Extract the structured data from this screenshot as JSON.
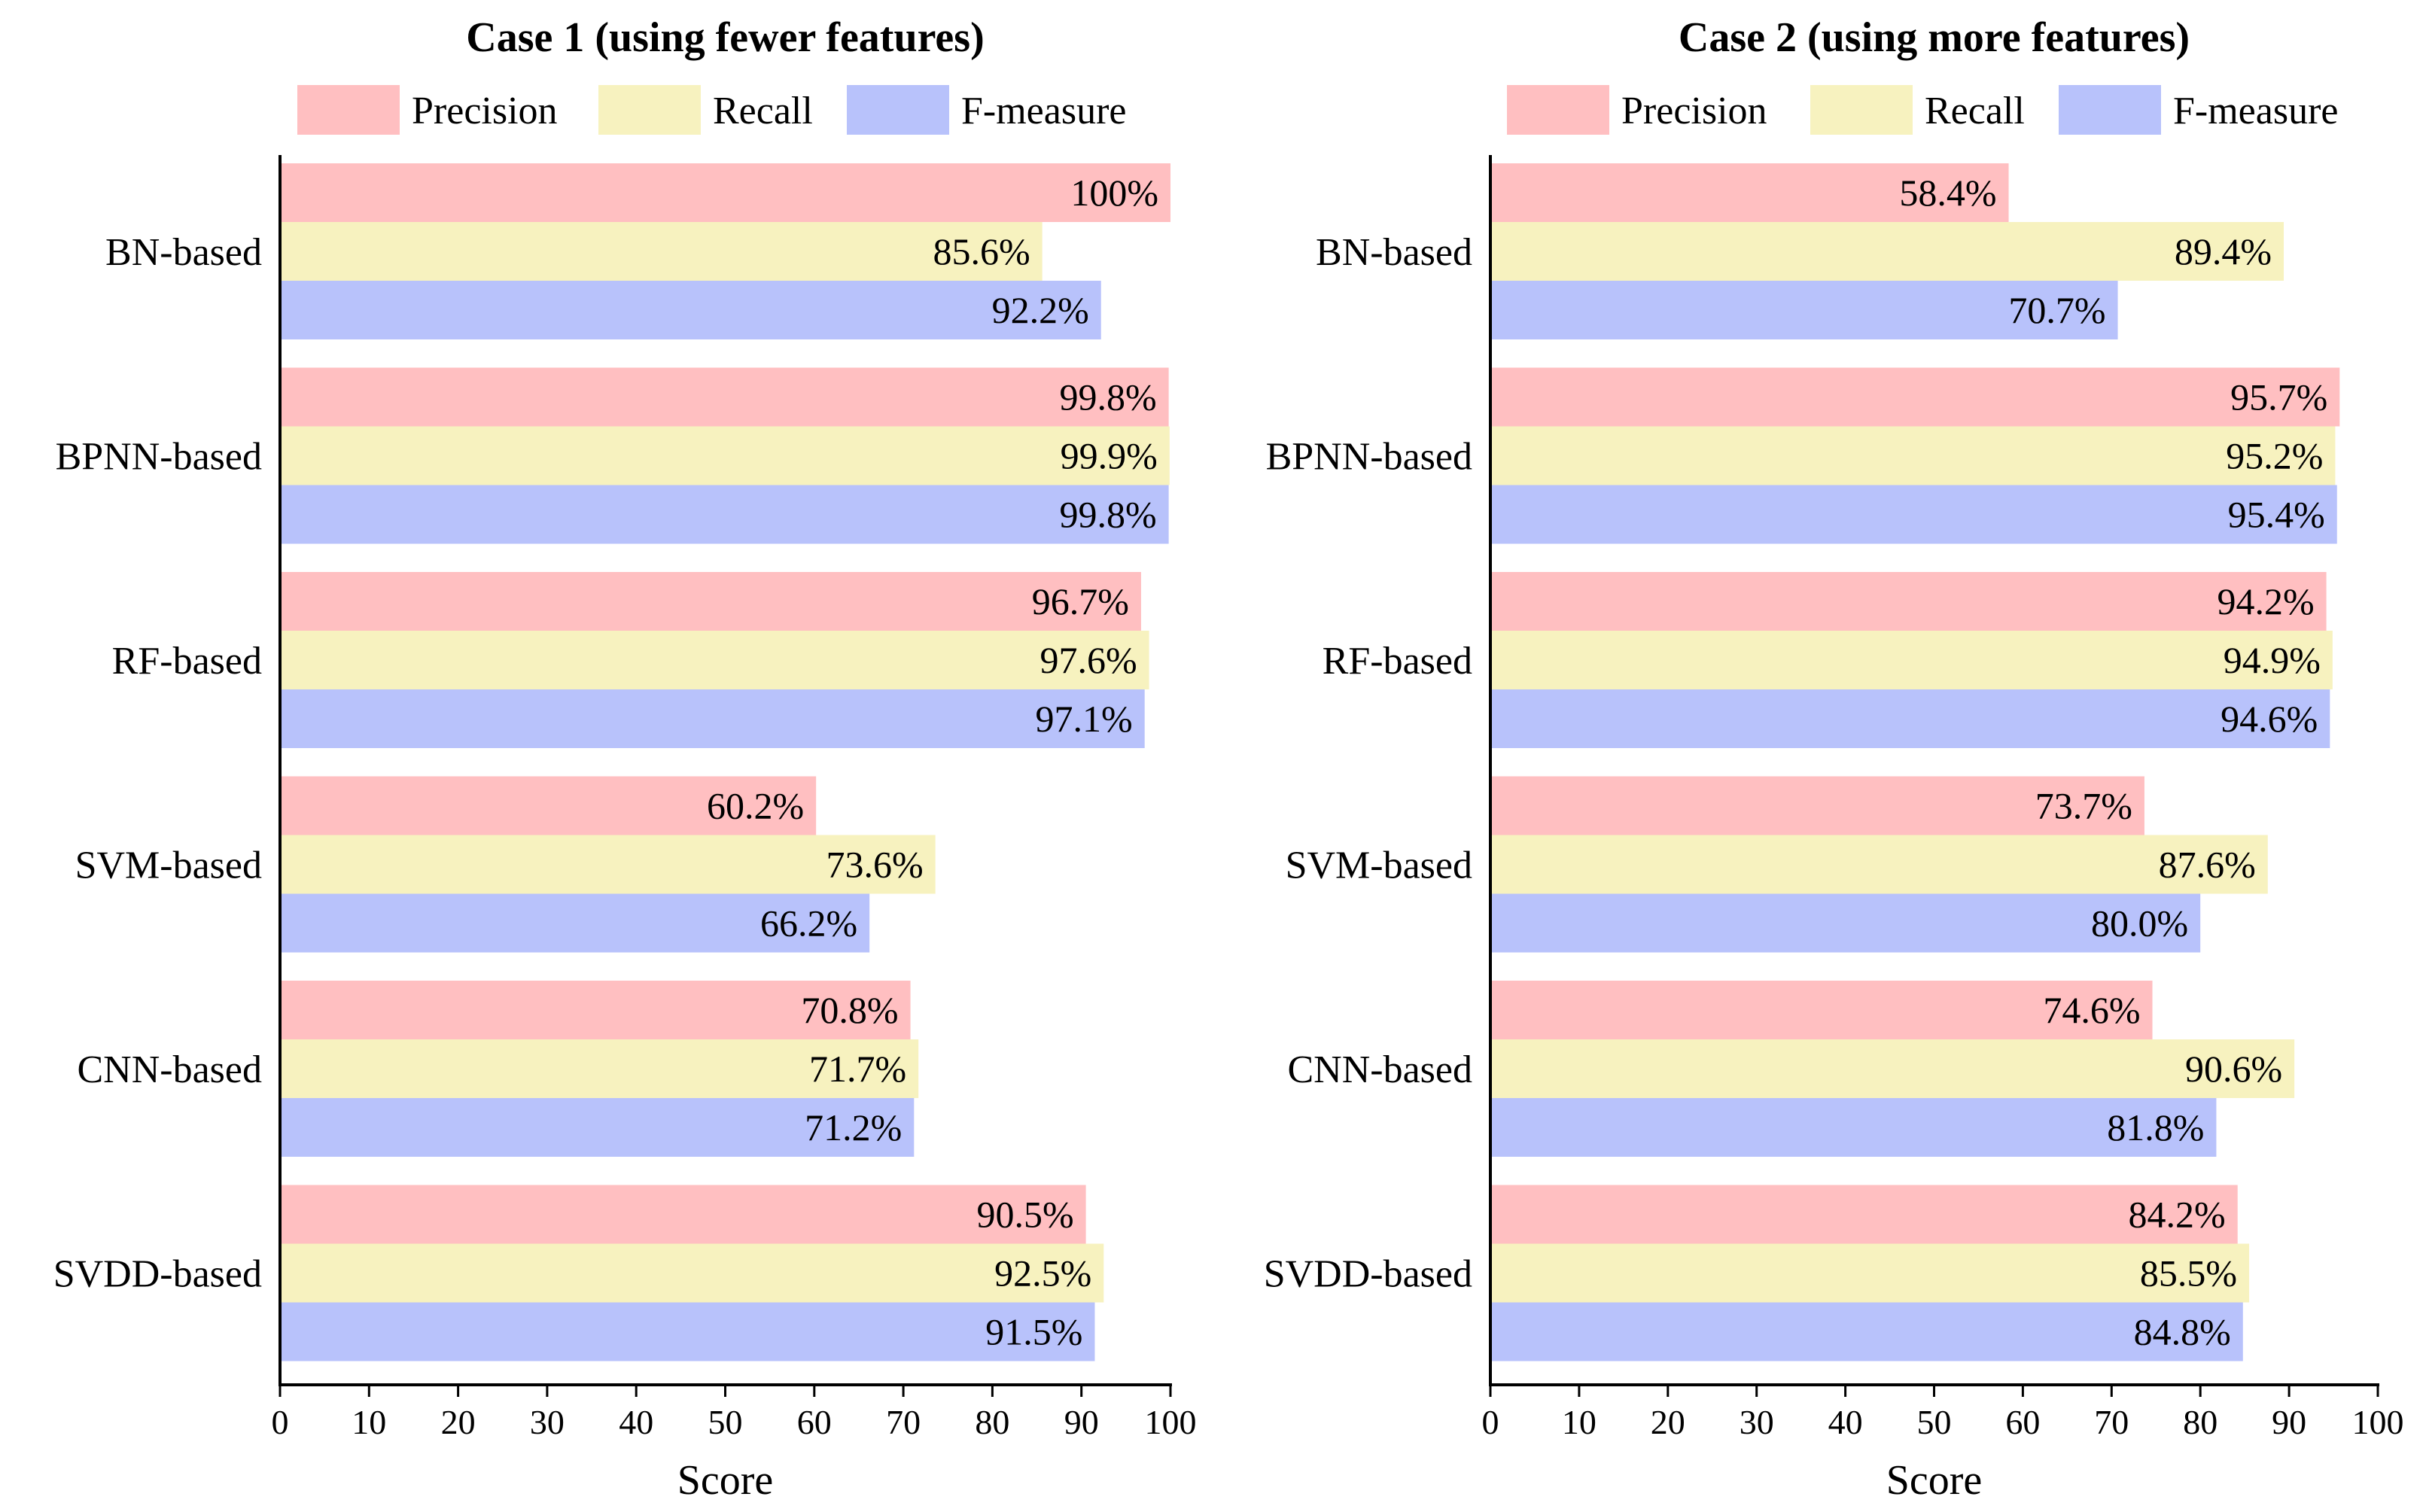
{
  "chart_data": [
    {
      "type": "bar",
      "orientation": "horizontal",
      "title": "Case 1 (using fewer features)",
      "xlabel": "Score",
      "ylabel": "",
      "xlim": [
        0,
        100
      ],
      "xticks": [
        "0",
        "10",
        "20",
        "30",
        "40",
        "50",
        "60",
        "70",
        "80",
        "90",
        "100"
      ],
      "categories": [
        "BN-based",
        "BPNN-based",
        "RF-based",
        "SVM-based",
        "CNN-based",
        "SVDD-based"
      ],
      "legend_position": "top",
      "series": [
        {
          "name": "Precision",
          "color": "#FFBFC1",
          "values": [
            100,
            99.8,
            96.7,
            60.2,
            70.8,
            90.5
          ],
          "labels": [
            "100%",
            "99.8%",
            "96.7%",
            "60.2%",
            "70.8%",
            "90.5%"
          ]
        },
        {
          "name": "Recall",
          "color": "#F7F2BF",
          "values": [
            85.6,
            99.9,
            97.6,
            73.6,
            71.7,
            92.5
          ],
          "labels": [
            "85.6%",
            "99.9%",
            "97.6%",
            "73.6%",
            "71.7%",
            "92.5%"
          ]
        },
        {
          "name": "F-measure",
          "color": "#B8C2FB",
          "values": [
            92.2,
            99.8,
            97.1,
            66.2,
            71.2,
            91.5
          ],
          "labels": [
            "92.2%",
            "99.8%",
            "97.1%",
            "66.2%",
            "71.2%",
            "91.5%"
          ]
        }
      ]
    },
    {
      "type": "bar",
      "orientation": "horizontal",
      "title": "Case 2 (using more features)",
      "xlabel": "Score",
      "ylabel": "",
      "xlim": [
        0,
        100
      ],
      "xticks": [
        "0",
        "10",
        "20",
        "30",
        "40",
        "50",
        "60",
        "70",
        "80",
        "90",
        "100"
      ],
      "categories": [
        "BN-based",
        "BPNN-based",
        "RF-based",
        "SVM-based",
        "CNN-based",
        "SVDD-based"
      ],
      "legend_position": "top",
      "series": [
        {
          "name": "Precision",
          "color": "#FFBFC1",
          "values": [
            58.4,
            95.7,
            94.2,
            73.7,
            74.6,
            84.2
          ],
          "labels": [
            "58.4%",
            "95.7%",
            "94.2%",
            "73.7%",
            "74.6%",
            "84.2%"
          ]
        },
        {
          "name": "Recall",
          "color": "#F7F2BF",
          "values": [
            89.4,
            95.2,
            94.9,
            87.6,
            90.6,
            85.5
          ],
          "labels": [
            "89.4%",
            "95.2%",
            "94.9%",
            "87.6%",
            "90.6%",
            "85.5%"
          ]
        },
        {
          "name": "F-measure",
          "color": "#B8C2FB",
          "values": [
            70.7,
            95.4,
            94.6,
            80.0,
            81.8,
            84.8
          ],
          "labels": [
            "70.7%",
            "95.4%",
            "94.6%",
            "80.0%",
            "81.8%",
            "84.8%"
          ]
        }
      ]
    }
  ]
}
